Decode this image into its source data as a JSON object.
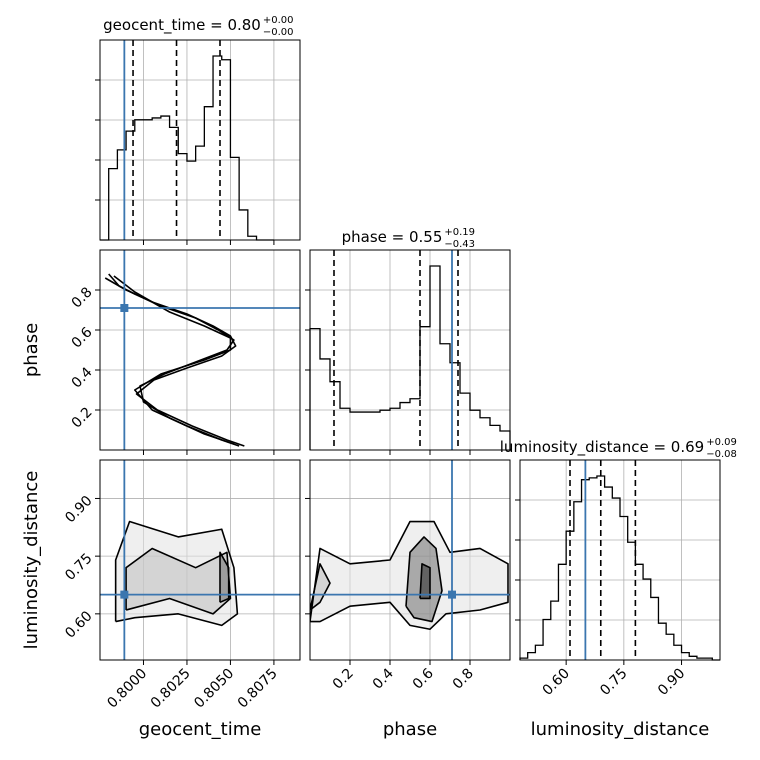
{
  "colors": {
    "truth": "#3b76af",
    "line": "#000000",
    "grid": "#b0b0b0"
  },
  "chart_data": {
    "type": "corner",
    "parameters": [
      "geocent_time",
      "phase",
      "luminosity_distance"
    ],
    "axis_labels": {
      "geocent_time": "geocent_time",
      "phase": "phase",
      "luminosity_distance": "luminosity_distance"
    },
    "ranges": {
      "geocent_time": [
        0.7975,
        0.809
      ],
      "phase": [
        0.0,
        1.0
      ],
      "luminosity_distance": [
        0.48,
        1.0
      ]
    },
    "ticks": {
      "geocent_time": [
        "0.8000",
        "0.8025",
        "0.8050",
        "0.8075"
      ],
      "phase": [
        "0.2",
        "0.4",
        "0.6",
        "0.8"
      ],
      "luminosity_distance": [
        "0.60",
        "0.75",
        "0.90"
      ]
    },
    "truths": {
      "geocent_time": 0.7989,
      "phase": 0.71,
      "luminosity_distance": 0.65
    },
    "titles": {
      "geocent_time": {
        "label": "geocent_time",
        "median": "0.80",
        "plus": "+0.00",
        "minus": "−0.00"
      },
      "phase": {
        "label": "phase",
        "median": "0.55",
        "plus": "+0.19",
        "minus": "−0.43"
      },
      "luminosity_distance": {
        "label": "luminosity_distance",
        "median": "0.69",
        "plus": "+0.09",
        "minus": "−0.08"
      }
    },
    "quantile_lines": {
      "geocent_time": [
        0.7994,
        0.8019,
        0.8044
      ],
      "phase": [
        0.12,
        0.55,
        0.74
      ],
      "luminosity_distance": [
        0.61,
        0.69,
        0.78
      ]
    },
    "histograms": {
      "geocent_time": {
        "edges": [
          0.7975,
          0.798,
          0.7985,
          0.799,
          0.7995,
          0.8,
          0.8005,
          0.801,
          0.8015,
          0.802,
          0.8025,
          0.803,
          0.8035,
          0.804,
          0.8045,
          0.805,
          0.8055,
          0.806,
          0.8065,
          0.807,
          0.8075
        ],
        "counts": [
          0,
          0.38,
          0.48,
          0.58,
          0.64,
          0.64,
          0.65,
          0.66,
          0.6,
          0.46,
          0.42,
          0.5,
          0.71,
          0.98,
          0.96,
          0.44,
          0.16,
          0.02,
          0,
          0
        ]
      },
      "phase": {
        "edges": [
          0.0,
          0.05,
          0.1,
          0.15,
          0.2,
          0.25,
          0.3,
          0.35,
          0.4,
          0.45,
          0.5,
          0.55,
          0.6,
          0.65,
          0.7,
          0.75,
          0.8,
          0.85,
          0.9,
          0.95,
          1.0
        ],
        "counts": [
          0.64,
          0.48,
          0.36,
          0.22,
          0.2,
          0.2,
          0.2,
          0.21,
          0.22,
          0.25,
          0.27,
          0.65,
          0.97,
          0.56,
          0.46,
          0.3,
          0.21,
          0.17,
          0.13,
          0.1
        ]
      },
      "luminosity_distance": {
        "edges": [
          0.48,
          0.5,
          0.52,
          0.54,
          0.56,
          0.58,
          0.6,
          0.62,
          0.64,
          0.66,
          0.68,
          0.7,
          0.72,
          0.74,
          0.76,
          0.78,
          0.8,
          0.82,
          0.84,
          0.86,
          0.88,
          0.9,
          0.92,
          0.94,
          0.96,
          0.98,
          1.0
        ],
        "counts": [
          0.01,
          0.04,
          0.08,
          0.22,
          0.32,
          0.52,
          0.7,
          0.86,
          0.98,
          0.99,
          1.0,
          0.94,
          0.88,
          0.78,
          0.64,
          0.52,
          0.44,
          0.34,
          0.2,
          0.14,
          0.08,
          0.04,
          0.02,
          0.01,
          0.01,
          0.0
        ]
      }
    },
    "contour_paths": {
      "phase_vs_geocent_time": [
        [
          [
            0.7983,
            0.87
          ],
          [
            0.7995,
            0.79
          ],
          [
            0.8015,
            0.69
          ],
          [
            0.8035,
            0.62
          ],
          [
            0.805,
            0.56
          ],
          [
            0.805,
            0.5
          ],
          [
            0.8035,
            0.45
          ],
          [
            0.801,
            0.38
          ],
          [
            0.7995,
            0.3
          ],
          [
            0.8005,
            0.2
          ],
          [
            0.8025,
            0.12
          ],
          [
            0.8045,
            0.05
          ],
          [
            0.8055,
            0.02
          ]
        ],
        [
          [
            0.798,
            0.88
          ],
          [
            0.7986,
            0.82
          ],
          [
            0.7995,
            0.78
          ],
          [
            0.801,
            0.72
          ],
          [
            0.803,
            0.66
          ],
          [
            0.8043,
            0.6
          ],
          [
            0.8052,
            0.55
          ],
          [
            0.8048,
            0.5
          ],
          [
            0.803,
            0.44
          ],
          [
            0.8012,
            0.38
          ],
          [
            0.7998,
            0.32
          ],
          [
            0.8,
            0.24
          ],
          [
            0.8015,
            0.16
          ],
          [
            0.8035,
            0.08
          ],
          [
            0.8052,
            0.03
          ]
        ],
        [
          [
            0.7978,
            0.86
          ],
          [
            0.799,
            0.8
          ],
          [
            0.8005,
            0.74
          ],
          [
            0.8025,
            0.68
          ],
          [
            0.804,
            0.62
          ],
          [
            0.805,
            0.57
          ],
          [
            0.8053,
            0.52
          ],
          [
            0.8045,
            0.47
          ],
          [
            0.8025,
            0.41
          ],
          [
            0.8006,
            0.35
          ],
          [
            0.7996,
            0.28
          ],
          [
            0.8008,
            0.2
          ],
          [
            0.8028,
            0.12
          ],
          [
            0.8048,
            0.05
          ],
          [
            0.8058,
            0.02
          ]
        ]
      ],
      "luminosity_distance_vs_geocent_time": [
        [
          [
            0.7984,
            0.58
          ],
          [
            0.7984,
            0.74
          ],
          [
            0.7992,
            0.84
          ],
          [
            0.802,
            0.8
          ],
          [
            0.8045,
            0.82
          ],
          [
            0.8052,
            0.72
          ],
          [
            0.8054,
            0.6
          ],
          [
            0.8045,
            0.57
          ],
          [
            0.802,
            0.6
          ],
          [
            0.7995,
            0.59
          ],
          [
            0.7984,
            0.58
          ]
        ],
        [
          [
            0.799,
            0.61
          ],
          [
            0.799,
            0.72
          ],
          [
            0.8005,
            0.77
          ],
          [
            0.803,
            0.72
          ],
          [
            0.8048,
            0.76
          ],
          [
            0.805,
            0.64
          ],
          [
            0.804,
            0.6
          ],
          [
            0.8015,
            0.64
          ],
          [
            0.799,
            0.61
          ]
        ],
        [
          [
            0.8044,
            0.63
          ],
          [
            0.8044,
            0.76
          ],
          [
            0.8049,
            0.72
          ],
          [
            0.8049,
            0.64
          ],
          [
            0.8044,
            0.63
          ]
        ]
      ],
      "luminosity_distance_vs_phase": [
        [
          [
            0.0,
            0.58
          ],
          [
            0.05,
            0.77
          ],
          [
            0.2,
            0.73
          ],
          [
            0.4,
            0.74
          ],
          [
            0.5,
            0.84
          ],
          [
            0.62,
            0.84
          ],
          [
            0.7,
            0.76
          ],
          [
            0.85,
            0.77
          ],
          [
            0.99,
            0.73
          ],
          [
            0.99,
            0.63
          ],
          [
            0.85,
            0.61
          ],
          [
            0.68,
            0.6
          ],
          [
            0.6,
            0.56
          ],
          [
            0.5,
            0.57
          ],
          [
            0.4,
            0.63
          ],
          [
            0.2,
            0.62
          ],
          [
            0.05,
            0.58
          ],
          [
            0.0,
            0.58
          ]
        ],
        [
          [
            0.0,
            0.61
          ],
          [
            0.05,
            0.73
          ],
          [
            0.1,
            0.68
          ],
          [
            0.05,
            0.63
          ],
          [
            0.0,
            0.61
          ]
        ],
        [
          [
            0.48,
            0.62
          ],
          [
            0.5,
            0.76
          ],
          [
            0.57,
            0.8
          ],
          [
            0.63,
            0.77
          ],
          [
            0.66,
            0.66
          ],
          [
            0.61,
            0.58
          ],
          [
            0.52,
            0.59
          ],
          [
            0.48,
            0.62
          ]
        ],
        [
          [
            0.55,
            0.64
          ],
          [
            0.56,
            0.73
          ],
          [
            0.6,
            0.72
          ],
          [
            0.6,
            0.64
          ],
          [
            0.55,
            0.64
          ]
        ]
      ]
    }
  }
}
